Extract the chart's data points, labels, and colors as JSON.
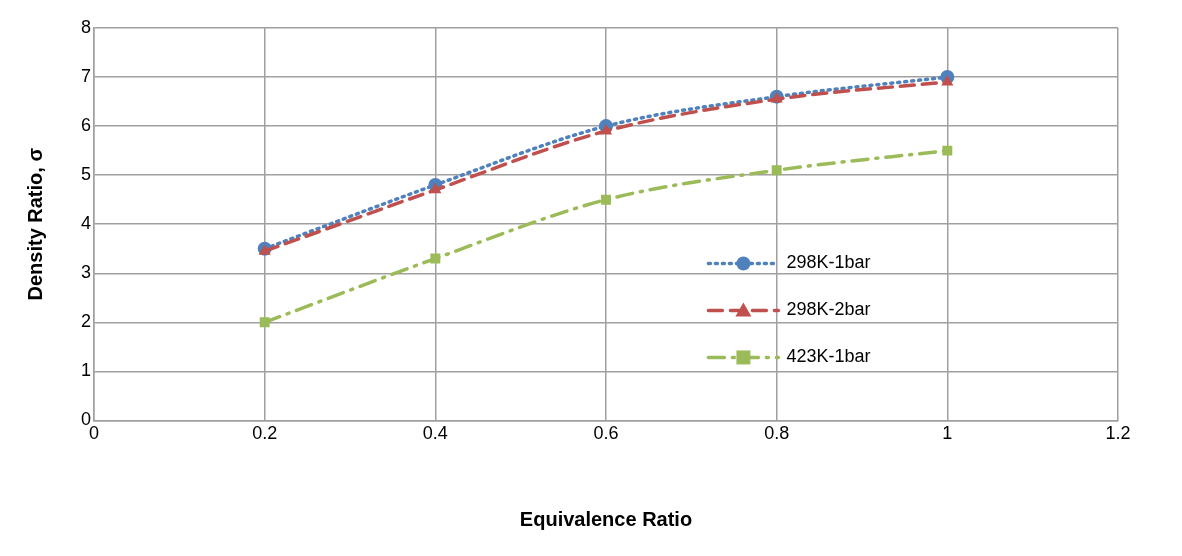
{
  "chart_data": {
    "type": "line",
    "xlabel": "Equivalence Ratio",
    "ylabel": "Density Ratio, σ",
    "x": [
      0.2,
      0.4,
      0.6,
      0.8,
      1.0
    ],
    "series": [
      {
        "name": "298K-1bar",
        "color": "#4f81bd",
        "values": [
          3.5,
          4.8,
          6.0,
          6.6,
          7.0
        ],
        "marker": "circle",
        "line_style": "dotted"
      },
      {
        "name": "298K-2bar",
        "color": "#c0504d",
        "values": [
          3.45,
          4.7,
          5.9,
          6.55,
          6.9
        ],
        "marker": "triangle",
        "line_style": "dashed"
      },
      {
        "name": "423K-1bar",
        "color": "#9bbb59",
        "values": [
          2.0,
          3.3,
          4.5,
          5.1,
          5.5
        ],
        "marker": "square",
        "line_style": "dashdot"
      }
    ],
    "xlim": [
      0,
      1.2
    ],
    "xticks": [
      0,
      0.2,
      0.4,
      0.6,
      0.8,
      1,
      1.2
    ],
    "ylim": [
      0,
      8
    ],
    "yticks": [
      0,
      1,
      2,
      3,
      4,
      5,
      6,
      7,
      8
    ],
    "grid": true,
    "legend": "right"
  }
}
